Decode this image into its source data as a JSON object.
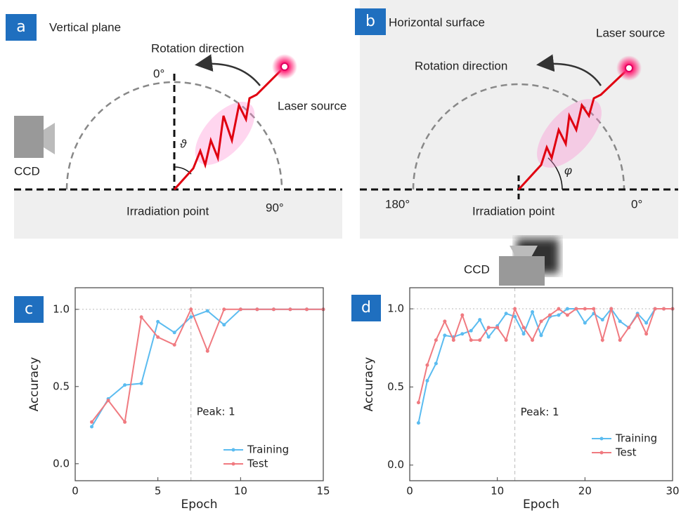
{
  "panel_a": {
    "label": "a",
    "title": "Vertical plane",
    "rotation": "Rotation direction",
    "laser": "Laser source",
    "zero": "0°",
    "angle": "ϑ",
    "ccd": "CCD",
    "point": "Irradiation point",
    "ninety": "90°"
  },
  "panel_b": {
    "label": "b",
    "title": "Horizontal surface",
    "laser": "Laser source",
    "rotation": "Rotation direction",
    "one_eighty": "180°",
    "point": "Irradiation point",
    "angle": "φ",
    "zero": "0°",
    "ccd": "CCD"
  },
  "chart_data": [
    {
      "type": "line",
      "label": "c",
      "xlabel": "Epoch",
      "ylabel": "Accuracy",
      "xlim": [
        0,
        15
      ],
      "xticks": [
        0,
        5,
        10,
        15
      ],
      "ylim": [
        -0.11,
        1.14
      ],
      "yticks": [
        {
          "value": 0,
          "label": "0.0"
        },
        {
          "value": 0.5,
          "label": "0.5"
        },
        {
          "value": 1,
          "label": "1.0"
        }
      ],
      "peak_x": 7,
      "annotation": "Peak: 1",
      "x": [
        1,
        2,
        3,
        4,
        5,
        6,
        7,
        8,
        9,
        10,
        11,
        12,
        13,
        14,
        15
      ],
      "series": [
        {
          "name": "Training",
          "color": "#5bbcf0",
          "values": [
            0.24,
            0.42,
            0.51,
            0.52,
            0.92,
            0.85,
            0.95,
            0.99,
            0.9,
            1,
            1,
            1,
            1,
            1,
            1
          ]
        },
        {
          "name": "Test",
          "color": "#f07a80",
          "values": [
            0.27,
            0.41,
            0.27,
            0.95,
            0.82,
            0.77,
            1,
            0.73,
            1,
            1,
            1,
            1,
            1,
            1,
            1
          ]
        }
      ]
    },
    {
      "type": "line",
      "label": "d",
      "xlabel": "Epoch",
      "ylabel": "Accuracy",
      "xlim": [
        0,
        30
      ],
      "xticks": [
        0,
        10,
        20,
        30
      ],
      "ylim": [
        -0.1,
        1.135
      ],
      "yticks": [
        {
          "value": 0,
          "label": "0.0"
        },
        {
          "value": 0.5,
          "label": "0.5"
        },
        {
          "value": 1,
          "label": "1.0"
        }
      ],
      "peak_x": 12,
      "annotation": "Peak: 1",
      "x": [
        1,
        2,
        3,
        4,
        5,
        6,
        7,
        8,
        9,
        10,
        11,
        12,
        13,
        14,
        15,
        16,
        17,
        18,
        19,
        20,
        21,
        22,
        23,
        24,
        25,
        26,
        27,
        28,
        29,
        30
      ],
      "series": [
        {
          "name": "Training",
          "color": "#5bbcf0",
          "values": [
            0.27,
            0.54,
            0.65,
            0.83,
            0.82,
            0.84,
            0.86,
            0.93,
            0.82,
            0.89,
            0.97,
            0.95,
            0.84,
            0.98,
            0.83,
            0.95,
            0.96,
            1,
            1,
            0.91,
            0.97,
            0.93,
            1,
            0.92,
            0.88,
            0.97,
            0.91,
            1,
            1,
            1
          ]
        },
        {
          "name": "Test",
          "color": "#f07a80",
          "values": [
            0.4,
            0.64,
            0.8,
            0.92,
            0.8,
            0.96,
            0.8,
            0.8,
            0.88,
            0.88,
            0.8,
            1,
            0.88,
            0.8,
            0.92,
            0.96,
            1,
            0.96,
            1,
            1,
            1,
            0.8,
            1,
            0.8,
            0.88,
            0.96,
            0.84,
            1,
            1,
            1
          ]
        }
      ]
    }
  ]
}
